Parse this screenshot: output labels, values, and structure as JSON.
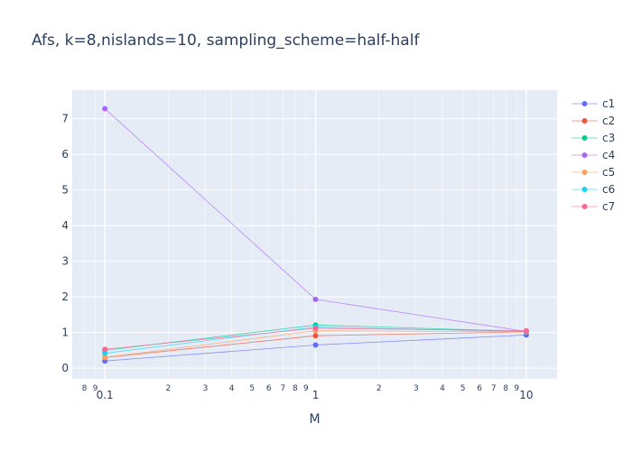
{
  "chart_data": {
    "type": "line",
    "title": "Afs, k=8,nislands=10, sampling_scheme=half-half",
    "xlabel": "M",
    "ylabel": "",
    "x_scale": "log",
    "x": [
      0.1,
      1,
      10
    ],
    "xlim": [
      0.07,
      14
    ],
    "ylim": [
      -0.3,
      7.8
    ],
    "x_major_ticks": [
      0.1,
      1,
      10
    ],
    "x_major_tick_labels": [
      "0.1",
      "1",
      "10"
    ],
    "x_minor_ticks": [
      0.08,
      0.09,
      0.2,
      0.3,
      0.4,
      0.5,
      0.6,
      0.7,
      0.8,
      0.9,
      2,
      3,
      4,
      5,
      6,
      7,
      8,
      9
    ],
    "x_minor_tick_labels": [
      "8",
      "9",
      "2",
      "3",
      "4",
      "5",
      "6",
      "7",
      "8",
      "9",
      "2",
      "3",
      "4",
      "5",
      "6",
      "7",
      "8",
      "9"
    ],
    "y_ticks": [
      0,
      1,
      2,
      3,
      4,
      5,
      6,
      7
    ],
    "y_tick_labels": [
      "0",
      "1",
      "2",
      "3",
      "4",
      "5",
      "6",
      "7"
    ],
    "grid": true,
    "legend_position": "right",
    "background": "#e5ecf6",
    "series": [
      {
        "name": "c1",
        "color": "#636efa",
        "values": [
          0.2,
          0.65,
          0.93
        ]
      },
      {
        "name": "c2",
        "color": "#ef553b",
        "values": [
          0.3,
          0.91,
          1.02
        ]
      },
      {
        "name": "c3",
        "color": "#00cc96",
        "values": [
          0.5,
          1.21,
          1.03
        ]
      },
      {
        "name": "c4",
        "color": "#ab63fa",
        "values": [
          7.28,
          1.93,
          1.03
        ]
      },
      {
        "name": "c5",
        "color": "#ffa15a",
        "values": [
          0.3,
          1.05,
          1.02
        ]
      },
      {
        "name": "c6",
        "color": "#19d3f3",
        "values": [
          0.42,
          1.15,
          1.03
        ]
      },
      {
        "name": "c7",
        "color": "#ff6692",
        "values": [
          0.53,
          1.12,
          1.05
        ]
      }
    ]
  }
}
